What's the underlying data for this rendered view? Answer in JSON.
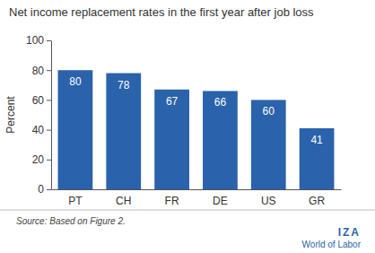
{
  "chart_data": {
    "type": "bar",
    "title": "Net income replacement rates in the first year after job loss",
    "y_label": "Percent",
    "categories": [
      "PT",
      "CH",
      "FR",
      "DE",
      "US",
      "GR"
    ],
    "values": [
      80,
      78,
      67,
      66,
      60,
      41
    ],
    "color": "#2a62ab",
    "ylim": [
      0,
      100
    ],
    "yticks": [
      0,
      20,
      40,
      60,
      80,
      100
    ],
    "grid": false,
    "data_labels": true,
    "source": "Source: Based on Figure 2.",
    "logo": [
      "IZA",
      "World of Labor"
    ]
  }
}
